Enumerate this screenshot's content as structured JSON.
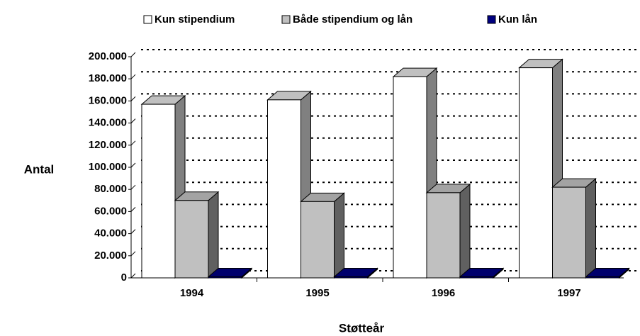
{
  "chart_data": {
    "type": "bar3d",
    "categories": [
      "1994",
      "1995",
      "1996",
      "1997"
    ],
    "series": [
      {
        "name": "Kun stipendium",
        "color": "#ffffff",
        "values": [
          157000,
          161000,
          182000,
          190000
        ]
      },
      {
        "name": "Både stipendium og lån",
        "color": "#c0c0c0",
        "values": [
          70000,
          69000,
          77000,
          82000
        ]
      },
      {
        "name": "Kun lån",
        "color": "#000080",
        "values": [
          1000,
          1000,
          1000,
          1000
        ]
      }
    ],
    "ylabel": "Antal",
    "xlabel": "Støtteår",
    "ylim": [
      0,
      200000
    ],
    "yticks": [
      0,
      {
        "value": 20000,
        "label": "20.000"
      },
      {
        "value": 40000,
        "label": "40.000"
      },
      {
        "value": 60000,
        "label": "60.000"
      },
      {
        "value": 80000,
        "label": "80.000"
      },
      {
        "value": 100000,
        "label": "100.000"
      },
      {
        "value": 120000,
        "label": "120.000"
      },
      {
        "value": 140000,
        "label": "140.000"
      },
      {
        "value": 160000,
        "label": "160.000"
      },
      {
        "value": 180000,
        "label": "180.000"
      },
      {
        "value": 200000,
        "label": "200.000"
      }
    ],
    "grid": true,
    "legend": "top"
  }
}
